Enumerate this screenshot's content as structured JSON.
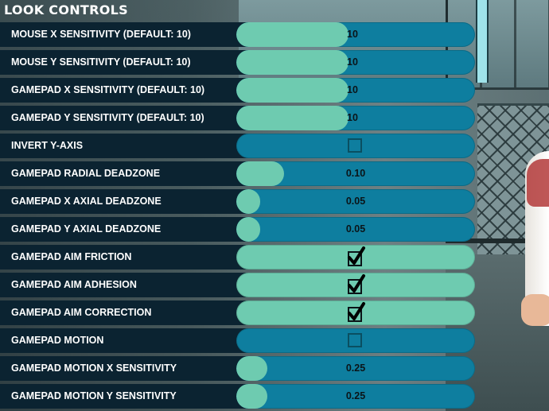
{
  "title": "LOOK CONTROLS",
  "colors": {
    "label_bg": "#0b2331",
    "track": "#0e7e9f",
    "fill": "#6ecbb0",
    "text": "#ffffff"
  },
  "settings": [
    {
      "label": "MOUSE X SENSITIVITY (DEFAULT: 10)",
      "type": "slider",
      "value": "10",
      "fraction": 0.47,
      "value_pos": "edge"
    },
    {
      "label": "MOUSE Y SENSITIVITY (DEFAULT: 10)",
      "type": "slider",
      "value": "10",
      "fraction": 0.47,
      "value_pos": "edge"
    },
    {
      "label": "GAMEPAD X SENSITIVITY (DEFAULT: 10)",
      "type": "slider",
      "value": "10",
      "fraction": 0.47,
      "value_pos": "edge"
    },
    {
      "label": "GAMEPAD Y SENSITIVITY (DEFAULT: 10)",
      "type": "slider",
      "value": "10",
      "fraction": 0.47,
      "value_pos": "edge"
    },
    {
      "label": "INVERT Y-AXIS",
      "type": "checkbox",
      "checked": false
    },
    {
      "label": "GAMEPAD RADIAL DEADZONE",
      "type": "slider",
      "value": "0.10",
      "fraction": 0.2,
      "value_pos": "center"
    },
    {
      "label": "GAMEPAD X AXIAL DEADZONE",
      "type": "slider",
      "value": "0.05",
      "fraction": 0.1,
      "value_pos": "center"
    },
    {
      "label": "GAMEPAD Y AXIAL DEADZONE",
      "type": "slider",
      "value": "0.05",
      "fraction": 0.1,
      "value_pos": "center"
    },
    {
      "label": "GAMEPAD AIM FRICTION",
      "type": "checkbox",
      "checked": true
    },
    {
      "label": "GAMEPAD AIM ADHESION",
      "type": "checkbox",
      "checked": true
    },
    {
      "label": "GAMEPAD AIM CORRECTION",
      "type": "checkbox",
      "checked": true
    },
    {
      "label": "GAMEPAD MOTION",
      "type": "checkbox",
      "checked": false
    },
    {
      "label": "GAMEPAD MOTION X SENSITIVITY",
      "type": "slider",
      "value": "0.25",
      "fraction": 0.13,
      "value_pos": "center"
    },
    {
      "label": "GAMEPAD MOTION Y SENSITIVITY",
      "type": "slider",
      "value": "0.25",
      "fraction": 0.13,
      "value_pos": "center"
    }
  ]
}
